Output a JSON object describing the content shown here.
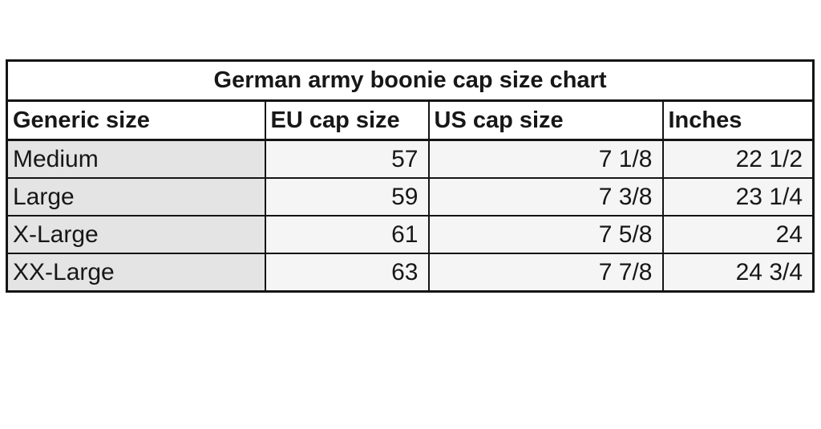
{
  "table": {
    "title": "German army boonie cap size chart",
    "headers": [
      "Generic size",
      "EU cap size",
      "US cap size",
      "Inches"
    ],
    "rows": [
      [
        "Medium",
        "57",
        "7 1/8",
        "22 1/2"
      ],
      [
        "Large",
        "59",
        "7 3/8",
        "23 1/4"
      ],
      [
        "X-Large",
        "61",
        "7 5/8",
        "24"
      ],
      [
        "XX-Large",
        "63",
        "7 7/8",
        "24 3/4"
      ]
    ]
  },
  "colors": {
    "border": "#141414",
    "label_column_bg": "#e4e4e4",
    "value_cell_bg": "#f5f5f5",
    "header_bg": "#ffffff",
    "text": "#171717"
  }
}
